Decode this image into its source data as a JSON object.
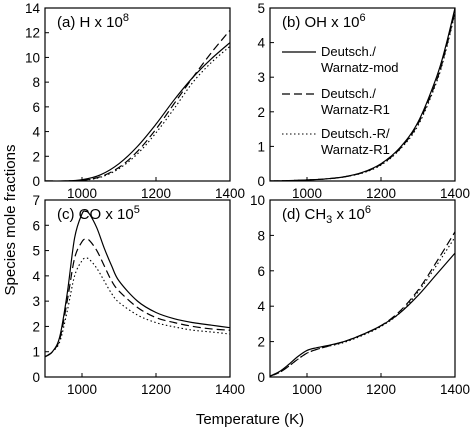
{
  "figure": {
    "ylabel": "Species mole fractions",
    "xlabel": "Temperature (K)"
  },
  "legend": [
    {
      "line1": "Deutsch./",
      "line2": "Warnatz-mod",
      "style": "solid"
    },
    {
      "line1": "Deutsch./",
      "line2": "Warnatz-R1",
      "style": "dashed"
    },
    {
      "line1": "Deutsch.-R/",
      "line2": "Warnatz-R1",
      "style": "dotted"
    }
  ],
  "chart_data": [
    {
      "type": "line",
      "panel": "a",
      "title": "(a) H x 10",
      "title_exp": "8",
      "xlim": [
        900,
        1400
      ],
      "ylim": [
        0,
        14
      ],
      "xticks": [
        1000,
        1200,
        1400
      ],
      "yticks": [
        0,
        2,
        4,
        6,
        8,
        10,
        12,
        14
      ],
      "x": [
        900,
        950,
        1000,
        1050,
        1100,
        1150,
        1200,
        1250,
        1300,
        1350,
        1400
      ],
      "series": [
        {
          "style": "solid",
          "values": [
            0,
            0,
            0.1,
            0.5,
            1.4,
            2.8,
            4.6,
            6.6,
            8.4,
            9.9,
            11.2
          ]
        },
        {
          "style": "dashed",
          "values": [
            0,
            0,
            0.05,
            0.35,
            1.1,
            2.4,
            4.2,
            6.3,
            8.4,
            10.4,
            12.2
          ]
        },
        {
          "style": "dotted",
          "values": [
            0,
            0,
            0.05,
            0.3,
            1.0,
            2.2,
            3.9,
            5.9,
            8.0,
            9.6,
            10.9
          ]
        }
      ]
    },
    {
      "type": "line",
      "panel": "b",
      "title": "(b) OH x 10",
      "title_exp": "6",
      "xlim": [
        900,
        1400
      ],
      "ylim": [
        0,
        5
      ],
      "xticks": [
        1000,
        1200,
        1400
      ],
      "yticks": [
        0,
        1,
        2,
        3,
        4,
        5
      ],
      "x": [
        900,
        950,
        1000,
        1050,
        1100,
        1150,
        1200,
        1250,
        1300,
        1350,
        1375,
        1400
      ],
      "series": [
        {
          "style": "solid",
          "values": [
            0,
            0.01,
            0.03,
            0.06,
            0.12,
            0.25,
            0.5,
            0.95,
            1.7,
            3.0,
            3.9,
            5.0
          ]
        },
        {
          "style": "dashed",
          "values": [
            0,
            0.01,
            0.03,
            0.06,
            0.12,
            0.24,
            0.48,
            0.92,
            1.65,
            2.9,
            3.8,
            4.9
          ]
        },
        {
          "style": "dotted",
          "values": [
            0,
            0.01,
            0.03,
            0.06,
            0.12,
            0.23,
            0.46,
            0.9,
            1.6,
            2.85,
            3.75,
            4.85
          ]
        }
      ]
    },
    {
      "type": "line",
      "panel": "c",
      "title": "(c) CO x 10",
      "title_exp": "5",
      "xlim": [
        900,
        1400
      ],
      "ylim": [
        0,
        7
      ],
      "xticks": [
        1000,
        1200,
        1400
      ],
      "yticks": [
        0,
        1,
        2,
        3,
        4,
        5,
        6,
        7
      ],
      "x": [
        900,
        920,
        940,
        960,
        980,
        1000,
        1010,
        1020,
        1040,
        1060,
        1080,
        1100,
        1150,
        1200,
        1250,
        1300,
        1350,
        1400
      ],
      "series": [
        {
          "style": "solid",
          "values": [
            0.8,
            1.0,
            1.6,
            3.3,
            5.5,
            6.45,
            6.55,
            6.45,
            5.9,
            5.1,
            4.4,
            3.8,
            3.0,
            2.55,
            2.3,
            2.15,
            2.05,
            1.95
          ]
        },
        {
          "style": "dashed",
          "values": [
            0.8,
            1.0,
            1.5,
            3.0,
            4.7,
            5.35,
            5.45,
            5.4,
            5.0,
            4.4,
            3.8,
            3.4,
            2.75,
            2.35,
            2.15,
            2.0,
            1.9,
            1.85
          ]
        },
        {
          "style": "dotted",
          "values": [
            0.8,
            1.0,
            1.4,
            2.6,
            4.0,
            4.6,
            4.7,
            4.65,
            4.3,
            3.8,
            3.3,
            2.95,
            2.45,
            2.15,
            1.98,
            1.85,
            1.78,
            1.7
          ]
        }
      ]
    },
    {
      "type": "line",
      "panel": "d",
      "title": "(d) CH",
      "title_sub": "3",
      "title_mid": " x 10",
      "title_exp": "6",
      "xlim": [
        900,
        1400
      ],
      "ylim": [
        0,
        10
      ],
      "xticks": [
        1000,
        1200,
        1400
      ],
      "yticks": [
        0,
        2,
        4,
        6,
        8,
        10
      ],
      "x": [
        900,
        925,
        950,
        975,
        1000,
        1025,
        1050,
        1100,
        1150,
        1200,
        1250,
        1300,
        1350,
        1400
      ],
      "series": [
        {
          "style": "solid",
          "values": [
            0.05,
            0.3,
            0.7,
            1.15,
            1.5,
            1.65,
            1.75,
            2.0,
            2.4,
            2.9,
            3.6,
            4.6,
            5.8,
            7.0
          ]
        },
        {
          "style": "dashed",
          "values": [
            0.05,
            0.25,
            0.6,
            1.0,
            1.35,
            1.55,
            1.7,
            2.0,
            2.4,
            2.9,
            3.7,
            4.9,
            6.5,
            8.2
          ]
        },
        {
          "style": "dotted",
          "values": [
            0.05,
            0.25,
            0.6,
            1.0,
            1.35,
            1.55,
            1.7,
            1.95,
            2.35,
            2.85,
            3.6,
            4.8,
            6.3,
            7.9
          ]
        }
      ]
    }
  ]
}
